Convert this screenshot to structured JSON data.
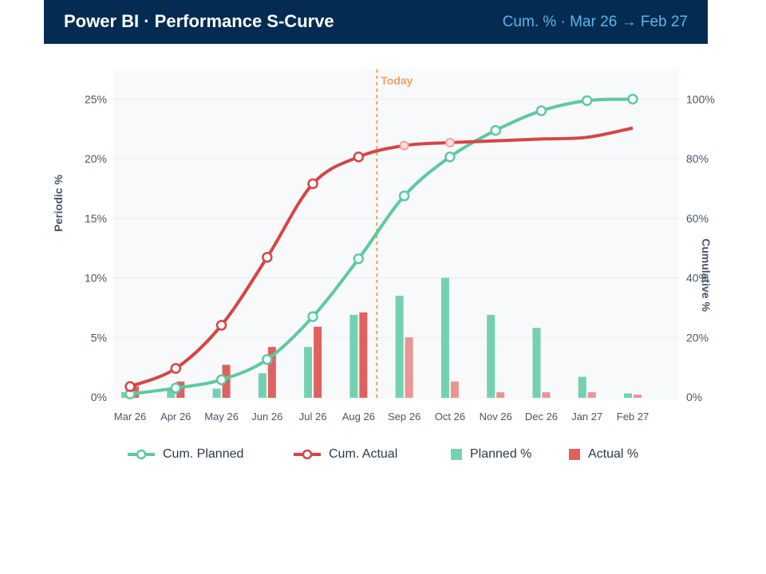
{
  "header": {
    "title": "Power BI · Performance S-Curve",
    "subtitle": "Cum. % · Mar 26 → Feb 27"
  },
  "colors": {
    "planned": "#5ec9a0",
    "planned_bar": "#74d1b0",
    "actual": "#d64545",
    "actual_bar": "#e06060",
    "actual_bar_forecast": "#eb9494",
    "actual_point_forecast": "#f0a0a0",
    "today": "#f0a060",
    "plot_bg": "#f8f9fb",
    "grid": "#e8ebef",
    "axis_text": "#4a5568"
  },
  "chart_data": {
    "type": "bar+line",
    "categories": [
      "Mar 26",
      "Apr 26",
      "May 26",
      "Jun 26",
      "Jul 26",
      "Aug 26",
      "Sep 26",
      "Oct 26",
      "Nov 26",
      "Dec 26",
      "Jan 27",
      "Feb 27"
    ],
    "ylabel": "Periodic %",
    "y2label": "Cumulative %",
    "ylim": [
      0,
      27.5
    ],
    "y2lim": [
      0,
      110
    ],
    "yticks": [
      0,
      5,
      10,
      15,
      20,
      25
    ],
    "y2ticks": [
      0,
      20,
      40,
      60,
      80,
      100
    ],
    "today_label": "Today",
    "today_position": 5.4,
    "actual_through_index": 5,
    "series": [
      {
        "name": "Cum. Planned",
        "type": "line",
        "axis": "y2",
        "values": [
          1.0,
          3.0,
          5.8,
          12.6,
          27.0,
          46.4,
          67.5,
          80.6,
          89.5,
          96.1,
          99.5,
          100.0
        ]
      },
      {
        "name": "Cum. Actual",
        "type": "line",
        "axis": "y2",
        "values": [
          3.5,
          9.6,
          24.1,
          46.9,
          71.6,
          80.6,
          84.4,
          85.4,
          86.0,
          86.6,
          87.2,
          90.3
        ]
      },
      {
        "name": "Planned %",
        "type": "bar",
        "axis": "y",
        "values": [
          0.4,
          0.6,
          0.7,
          2.0,
          4.2,
          6.9,
          8.5,
          10.0,
          6.9,
          5.8,
          1.7,
          0.3
        ]
      },
      {
        "name": "Actual %",
        "type": "bar",
        "axis": "y",
        "values": [
          0.9,
          1.3,
          2.7,
          4.2,
          5.9,
          7.1,
          5.0,
          1.3,
          0.4,
          0.4,
          0.4,
          0.2
        ]
      }
    ]
  }
}
